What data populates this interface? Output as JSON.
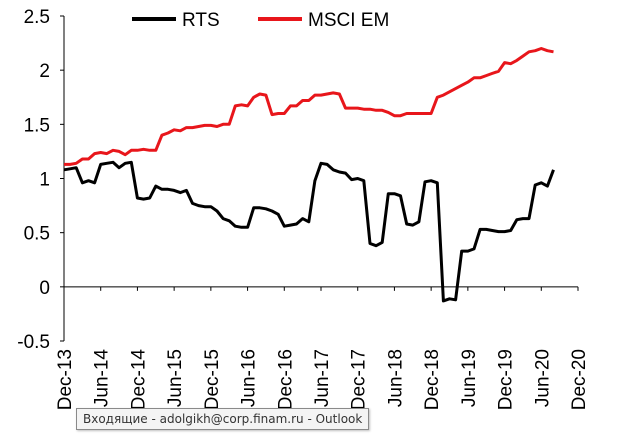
{
  "chart_data": {
    "type": "line",
    "legend_position": "top",
    "grid": false,
    "ylim": [
      -0.5,
      2.5
    ],
    "y_ticks": [
      "-0.5",
      "0",
      "0.5",
      "1",
      "1.5",
      "2",
      "2.5"
    ],
    "x_ticks": [
      "Dec-13",
      "Jun-14",
      "Dec-14",
      "Jun-15",
      "Dec-15",
      "Jun-16",
      "Dec-16",
      "Jun-17",
      "Dec-17",
      "Jun-18",
      "Dec-18",
      "Jun-19",
      "Dec-19",
      "Jun-20",
      "Dec-20"
    ],
    "x_range": [
      0,
      84
    ],
    "series": [
      {
        "name": "RTS",
        "color": "#000000",
        "points": [
          [
            0,
            1.08
          ],
          [
            1,
            1.09
          ],
          [
            2,
            1.1
          ],
          [
            3,
            0.96
          ],
          [
            4,
            0.98
          ],
          [
            5,
            0.96
          ],
          [
            6,
            1.13
          ],
          [
            7,
            1.14
          ],
          [
            8,
            1.15
          ],
          [
            9,
            1.1
          ],
          [
            10,
            1.14
          ],
          [
            11,
            1.15
          ],
          [
            12,
            0.82
          ],
          [
            13,
            0.81
          ],
          [
            14,
            0.82
          ],
          [
            15,
            0.93
          ],
          [
            16,
            0.9
          ],
          [
            17,
            0.9
          ],
          [
            18,
            0.89
          ],
          [
            19,
            0.87
          ],
          [
            20,
            0.89
          ],
          [
            21,
            0.77
          ],
          [
            22,
            0.75
          ],
          [
            23,
            0.74
          ],
          [
            24,
            0.74
          ],
          [
            25,
            0.7
          ],
          [
            26,
            0.63
          ],
          [
            27,
            0.61
          ],
          [
            28,
            0.56
          ],
          [
            29,
            0.55
          ],
          [
            30,
            0.55
          ],
          [
            31,
            0.73
          ],
          [
            32,
            0.73
          ],
          [
            33,
            0.72
          ],
          [
            34,
            0.7
          ],
          [
            35,
            0.67
          ],
          [
            36,
            0.56
          ],
          [
            37,
            0.57
          ],
          [
            38,
            0.58
          ],
          [
            39,
            0.63
          ],
          [
            40,
            0.6
          ],
          [
            41,
            0.98
          ],
          [
            42,
            1.14
          ],
          [
            43,
            1.13
          ],
          [
            44,
            1.08
          ],
          [
            45,
            1.06
          ],
          [
            46,
            1.05
          ],
          [
            47,
            0.99
          ],
          [
            48,
            1.0
          ],
          [
            49,
            0.98
          ],
          [
            50,
            0.4
          ],
          [
            51,
            0.38
          ],
          [
            52,
            0.41
          ],
          [
            53,
            0.86
          ],
          [
            54,
            0.86
          ],
          [
            55,
            0.84
          ],
          [
            56,
            0.58
          ],
          [
            57,
            0.57
          ],
          [
            58,
            0.6
          ],
          [
            59,
            0.97
          ],
          [
            60,
            0.98
          ],
          [
            61,
            0.96
          ],
          [
            62,
            -0.13
          ],
          [
            63,
            -0.11
          ],
          [
            64,
            -0.12
          ],
          [
            65,
            0.33
          ],
          [
            66,
            0.33
          ],
          [
            67,
            0.35
          ],
          [
            68,
            0.53
          ],
          [
            69,
            0.53
          ],
          [
            70,
            0.52
          ],
          [
            71,
            0.51
          ],
          [
            72,
            0.51
          ],
          [
            73,
            0.52
          ],
          [
            74,
            0.62
          ],
          [
            75,
            0.63
          ],
          [
            76,
            0.63
          ],
          [
            77,
            0.94
          ],
          [
            78,
            0.96
          ],
          [
            79,
            0.93
          ],
          [
            80,
            1.08
          ]
        ]
      },
      {
        "name": "MSCI EM",
        "color": "#e8161b",
        "points": [
          [
            0,
            1.13
          ],
          [
            1,
            1.13
          ],
          [
            2,
            1.14
          ],
          [
            3,
            1.18
          ],
          [
            4,
            1.18
          ],
          [
            5,
            1.23
          ],
          [
            6,
            1.24
          ],
          [
            7,
            1.23
          ],
          [
            8,
            1.26
          ],
          [
            9,
            1.25
          ],
          [
            10,
            1.22
          ],
          [
            11,
            1.26
          ],
          [
            12,
            1.26
          ],
          [
            13,
            1.27
          ],
          [
            14,
            1.26
          ],
          [
            15,
            1.26
          ],
          [
            16,
            1.4
          ],
          [
            17,
            1.42
          ],
          [
            18,
            1.45
          ],
          [
            19,
            1.44
          ],
          [
            20,
            1.47
          ],
          [
            21,
            1.47
          ],
          [
            22,
            1.48
          ],
          [
            23,
            1.49
          ],
          [
            24,
            1.49
          ],
          [
            25,
            1.48
          ],
          [
            26,
            1.5
          ],
          [
            27,
            1.5
          ],
          [
            28,
            1.67
          ],
          [
            29,
            1.68
          ],
          [
            30,
            1.67
          ],
          [
            31,
            1.75
          ],
          [
            32,
            1.78
          ],
          [
            33,
            1.77
          ],
          [
            34,
            1.59
          ],
          [
            35,
            1.6
          ],
          [
            36,
            1.6
          ],
          [
            37,
            1.67
          ],
          [
            38,
            1.67
          ],
          [
            39,
            1.72
          ],
          [
            40,
            1.72
          ],
          [
            41,
            1.77
          ],
          [
            42,
            1.77
          ],
          [
            43,
            1.78
          ],
          [
            44,
            1.79
          ],
          [
            45,
            1.78
          ],
          [
            46,
            1.65
          ],
          [
            47,
            1.65
          ],
          [
            48,
            1.65
          ],
          [
            49,
            1.64
          ],
          [
            50,
            1.64
          ],
          [
            51,
            1.63
          ],
          [
            52,
            1.63
          ],
          [
            53,
            1.61
          ],
          [
            54,
            1.58
          ],
          [
            55,
            1.58
          ],
          [
            56,
            1.6
          ],
          [
            57,
            1.6
          ],
          [
            58,
            1.6
          ],
          [
            59,
            1.6
          ],
          [
            60,
            1.6
          ],
          [
            61,
            1.75
          ],
          [
            62,
            1.77
          ],
          [
            63,
            1.8
          ],
          [
            64,
            1.83
          ],
          [
            65,
            1.86
          ],
          [
            66,
            1.89
          ],
          [
            67,
            1.93
          ],
          [
            68,
            1.93
          ],
          [
            69,
            1.95
          ],
          [
            70,
            1.97
          ],
          [
            71,
            1.99
          ],
          [
            72,
            2.07
          ],
          [
            73,
            2.06
          ],
          [
            74,
            2.09
          ],
          [
            75,
            2.13
          ],
          [
            76,
            2.17
          ],
          [
            77,
            2.18
          ],
          [
            78,
            2.2
          ],
          [
            79,
            2.18
          ],
          [
            80,
            2.17
          ]
        ]
      }
    ]
  },
  "taskbar_tooltip": "Входящие - adolgikh@corp.finam.ru - Outlook"
}
